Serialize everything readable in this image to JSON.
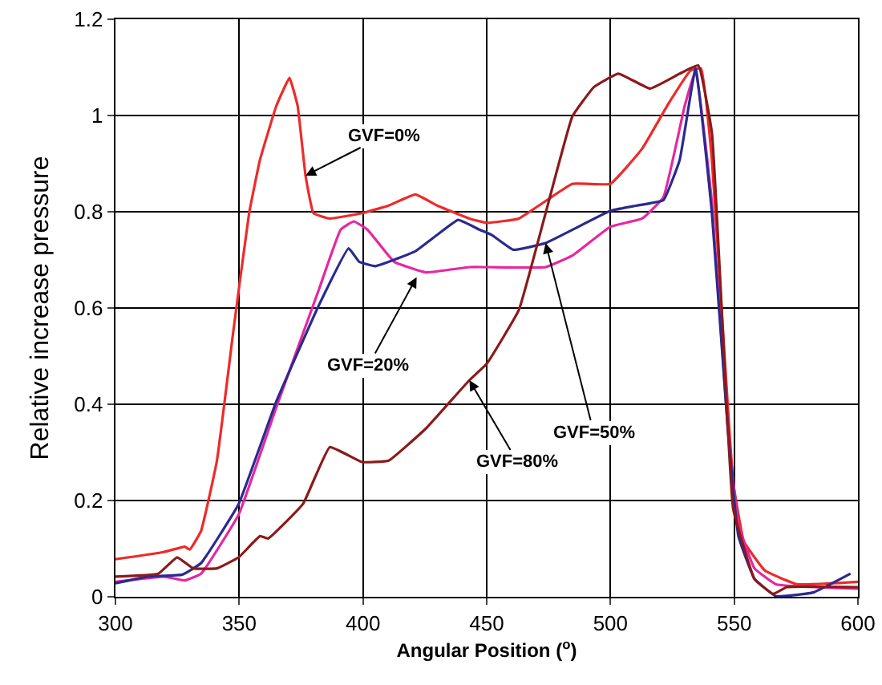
{
  "chart_data": {
    "type": "line",
    "xlabel": "Angular Position ($^{o}$)",
    "ylabel": "Relative increase pressure",
    "xlim": [
      300,
      600
    ],
    "xticks": [
      300,
      350,
      400,
      450,
      500,
      550,
      600
    ],
    "ylim": [
      0,
      1.2
    ],
    "yticks": [
      0,
      {
        "value": 0.2,
        "label": "0.2"
      },
      {
        "value": 0.4,
        "label": "0.4"
      },
      {
        "value": 0.6,
        "label": "0.6"
      },
      {
        "value": 0.8,
        "label": "0.8"
      },
      1,
      {
        "value": 1.2,
        "label": "1.2"
      }
    ],
    "grid": true,
    "marker": "none",
    "line_style": "solid",
    "series": [
      {
        "color": "#ee2a2a",
        "x": [
          300,
          319.5,
          328,
          330,
          334.6,
          341,
          347.6,
          354,
          358.4,
          365,
          370.3,
          373.6,
          376.8,
          380,
          386.6,
          399.6,
          410.4,
          421.2,
          430,
          443,
          450,
          463,
          484.6,
          500,
          512.8,
          523.6,
          532.3,
          536.6,
          541,
          545.2,
          549.6,
          553.9,
          562.5,
          575.5,
          600
        ],
        "values": [
          0.078,
          0.093,
          0.104,
          0.098,
          0.137,
          0.283,
          0.551,
          0.797,
          0.908,
          1.02,
          1.078,
          1.02,
          0.875,
          0.797,
          0.786,
          0.797,
          0.813,
          0.836,
          0.813,
          0.786,
          0.777,
          0.786,
          0.858,
          0.858,
          0.931,
          1.026,
          1.093,
          1.098,
          0.908,
          0.573,
          0.238,
          0.115,
          0.054,
          0.026,
          0.031
        ]
      },
      {
        "color": "#e6279f",
        "x": [
          300,
          319.5,
          328,
          334.6,
          349.8,
          365,
          382.3,
          391,
          396.3,
          401.8,
          412.6,
          425.5,
          443,
          450,
          473.8,
          484.6,
          500,
          512.8,
          521.4,
          530,
          534.4,
          541,
          547.4,
          551.7,
          558.2,
          566.9,
          600
        ],
        "values": [
          0.031,
          0.042,
          0.034,
          0.048,
          0.171,
          0.394,
          0.64,
          0.763,
          0.78,
          0.763,
          0.696,
          0.674,
          0.685,
          0.685,
          0.685,
          0.709,
          0.769,
          0.786,
          0.83,
          1.02,
          1.093,
          0.819,
          0.35,
          0.149,
          0.059,
          0.026,
          0.017
        ]
      },
      {
        "color": "#2a2a8f",
        "x": [
          300,
          313,
          327,
          334.6,
          349.8,
          365,
          382.3,
          394.2,
          398.5,
          405,
          421.2,
          430,
          438.5,
          447,
          452,
          460.8,
          473.8,
          500,
          510.8,
          521.4,
          528,
          534.4,
          541,
          547.4,
          551.7,
          558.2,
          566.9,
          582,
          597
        ],
        "values": [
          0.028,
          0.042,
          0.046,
          0.07,
          0.193,
          0.406,
          0.607,
          0.724,
          0.696,
          0.687,
          0.718,
          0.752,
          0.783,
          0.763,
          0.752,
          0.721,
          0.735,
          0.802,
          0.813,
          0.824,
          0.908,
          1.098,
          0.797,
          0.35,
          0.126,
          0.037,
          0.001,
          0.009,
          0.048
        ]
      },
      {
        "color": "#8b1a1a",
        "x": [
          300,
          317.3,
          324.9,
          331.4,
          341,
          349.8,
          358.4,
          361.7,
          375.8,
          386.6,
          399.6,
          410.4,
          425.5,
          443,
          450,
          463,
          473.8,
          484.6,
          493.3,
          503.2,
          516,
          528,
          535.5,
          541,
          545.2,
          549.6,
          558.2,
          565.8,
          571.2,
          600
        ],
        "values": [
          0.042,
          0.048,
          0.082,
          0.059,
          0.059,
          0.082,
          0.126,
          0.121,
          0.193,
          0.311,
          0.28,
          0.283,
          0.35,
          0.45,
          0.484,
          0.596,
          0.797,
          0.998,
          1.059,
          1.087,
          1.056,
          1.087,
          1.104,
          0.964,
          0.573,
          0.182,
          0.037,
          0.006,
          0.02,
          0.02
        ]
      }
    ],
    "annotations": [
      {
        "text": "GVF=0%",
        "x": 376.8,
        "y": 0.875
      },
      {
        "text": "GVF=20%",
        "x": 421.7,
        "y": 0.664
      },
      {
        "text": "GVF=50%",
        "x": 473.8,
        "y": 0.735
      },
      {
        "text": "GVF=80%",
        "x": 443,
        "y": 0.45
      }
    ]
  }
}
